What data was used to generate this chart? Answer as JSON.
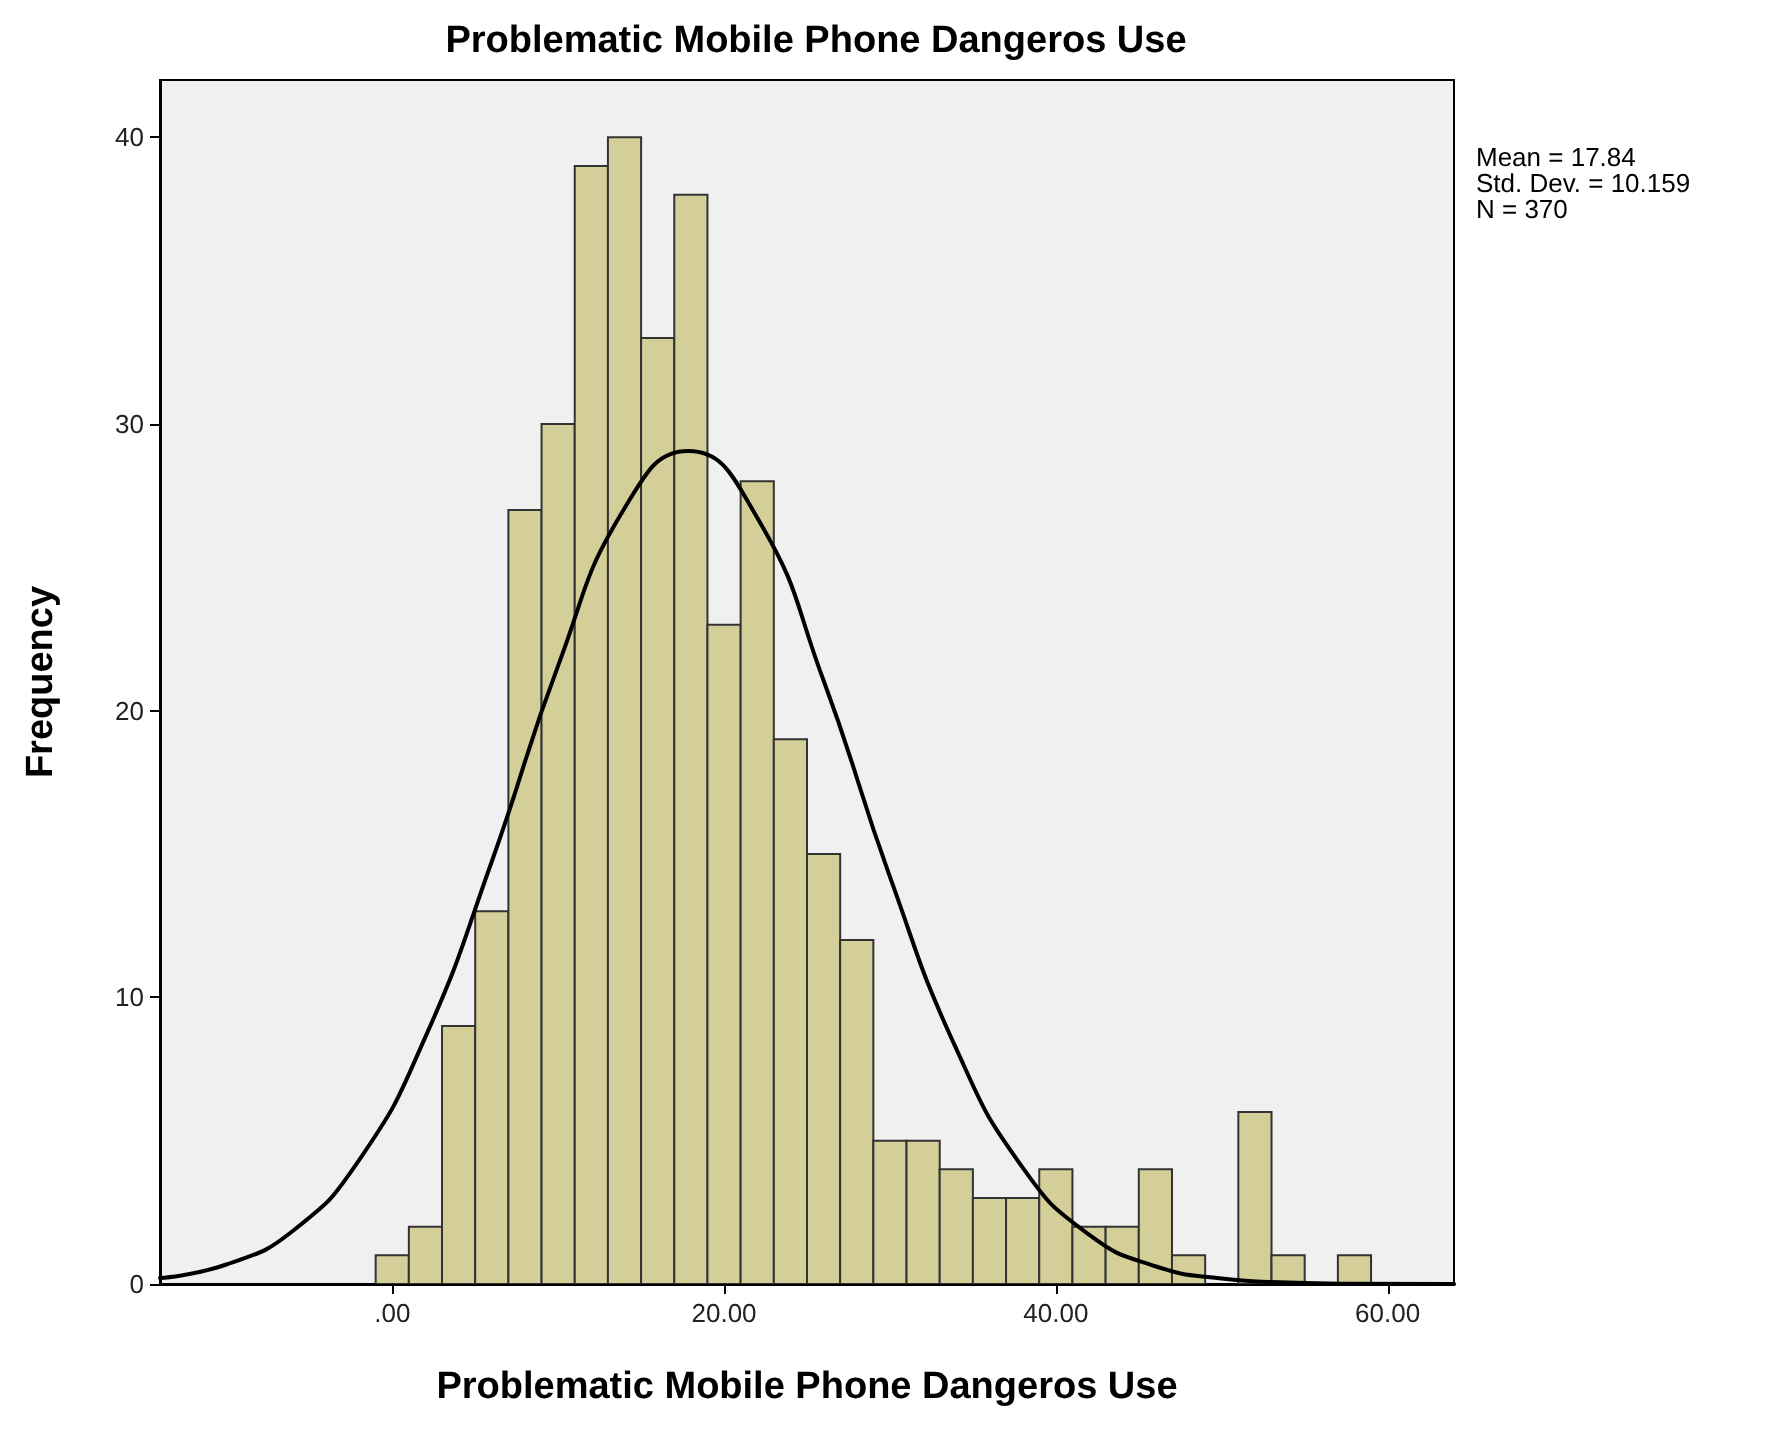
{
  "chart_data": {
    "type": "histogram",
    "title": "Problematic Mobile Phone Dangeros Use",
    "xlabel": "Problematic Mobile Phone Dangeros Use",
    "ylabel": "Frequency",
    "annotations": [
      "Mean = 17.84",
      "Std. Dev. = 10.159",
      "N = 370"
    ],
    "bins": [
      -1,
      1,
      3,
      5,
      7,
      9,
      11,
      13,
      15,
      17,
      19,
      21,
      23,
      25,
      27,
      29,
      31,
      33,
      35,
      37,
      39,
      41,
      43,
      45,
      47,
      49,
      51,
      53,
      55,
      57,
      59
    ],
    "values": [
      1,
      2,
      9,
      13,
      27,
      30,
      39,
      40,
      33,
      38,
      23,
      28,
      19,
      15,
      12,
      5,
      5,
      4,
      3,
      3,
      4,
      2,
      2,
      4,
      1,
      0,
      6,
      1,
      0,
      1
    ],
    "color": "#d4cf98",
    "series": [
      {
        "type": "line",
        "color": "#000000",
        "x": [
          -14,
          -10,
          -6,
          -2,
          2,
          6,
          10,
          14,
          17.84,
          22,
          26,
          30,
          34,
          38,
          42,
          46,
          50,
          54,
          58,
          64
        ],
        "values": [
          0.21,
          0.68,
          1.85,
          4.32,
          8.62,
          14.74,
          21.57,
          27.06,
          29.06,
          26.73,
          21.05,
          14.2,
          8.2,
          4.06,
          1.72,
          0.62,
          0.19,
          0.05,
          0.01,
          0
        ]
      }
    ],
    "marker": "none",
    "line_style": "solid",
    "xlim": [
      -14,
      64
    ],
    "xticks": [
      {
        "value": 0,
        "label": ".00"
      },
      {
        "value": 20,
        "label": "20.00"
      },
      {
        "value": 40,
        "label": "40.00"
      },
      {
        "value": 60,
        "label": "60.00"
      }
    ],
    "ylim": [
      0,
      42
    ],
    "yticks": [
      0,
      10,
      20,
      30,
      40
    ],
    "grid": false,
    "legend": false
  }
}
